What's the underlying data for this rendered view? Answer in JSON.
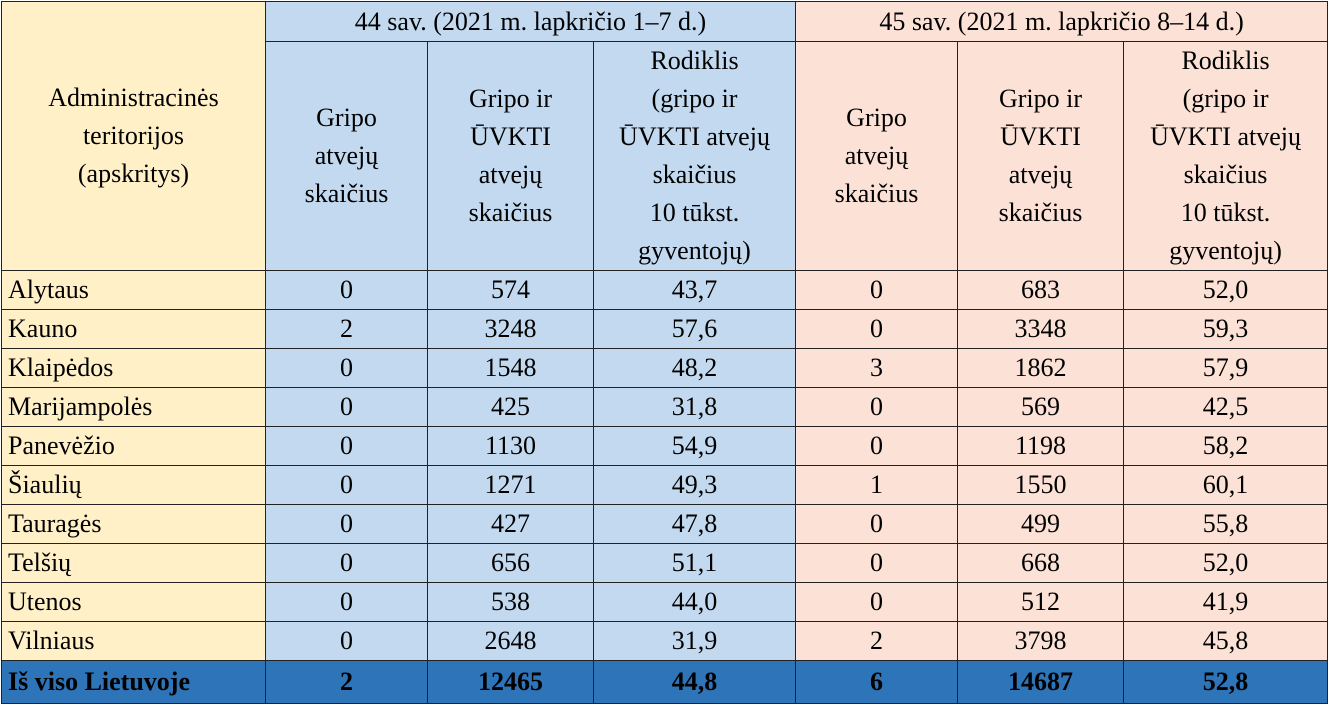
{
  "header": {
    "territory_label_lines": [
      "Administracinės",
      "teritorijos",
      "(apskritys)"
    ],
    "week44_title": "44 sav. (2021 m. lapkričio 1–7 d.)",
    "week45_title": "45 sav. (2021 m. lapkričio 8–14 d.)",
    "col_flu_lines": [
      "Gripo",
      "atvejų",
      "skaičius"
    ],
    "col_flu_ari_lines": [
      "Gripo ir",
      "ŪVKTI",
      "atvejų",
      "skaičius"
    ],
    "col_rate_lines": [
      "Rodiklis",
      "(gripo ir",
      "ŪVKTI atvejų",
      "skaičius",
      "10 tūkst.",
      "gyventojų)"
    ]
  },
  "rows": [
    {
      "territory": "Alytaus",
      "w44_flu": "0",
      "w44_flu_ari": "574",
      "w44_rate": "43,7",
      "w45_flu": "0",
      "w45_flu_ari": "683",
      "w45_rate": "52,0"
    },
    {
      "territory": "Kauno",
      "w44_flu": "2",
      "w44_flu_ari": "3248",
      "w44_rate": "57,6",
      "w45_flu": "0",
      "w45_flu_ari": "3348",
      "w45_rate": "59,3"
    },
    {
      "territory": "Klaipėdos",
      "w44_flu": "0",
      "w44_flu_ari": "1548",
      "w44_rate": "48,2",
      "w45_flu": "3",
      "w45_flu_ari": "1862",
      "w45_rate": "57,9"
    },
    {
      "territory": "Marijampolės",
      "w44_flu": "0",
      "w44_flu_ari": "425",
      "w44_rate": "31,8",
      "w45_flu": "0",
      "w45_flu_ari": "569",
      "w45_rate": "42,5"
    },
    {
      "territory": "Panevėžio",
      "w44_flu": "0",
      "w44_flu_ari": "1130",
      "w44_rate": "54,9",
      "w45_flu": "0",
      "w45_flu_ari": "1198",
      "w45_rate": "58,2"
    },
    {
      "territory": "Šiaulių",
      "w44_flu": "0",
      "w44_flu_ari": "1271",
      "w44_rate": "49,3",
      "w45_flu": "1",
      "w45_flu_ari": "1550",
      "w45_rate": "60,1"
    },
    {
      "territory": "Tauragės",
      "w44_flu": "0",
      "w44_flu_ari": "427",
      "w44_rate": "47,8",
      "w45_flu": "0",
      "w45_flu_ari": "499",
      "w45_rate": "55,8"
    },
    {
      "territory": "Telšių",
      "w44_flu": "0",
      "w44_flu_ari": "656",
      "w44_rate": "51,1",
      "w45_flu": "0",
      "w45_flu_ari": "668",
      "w45_rate": "52,0"
    },
    {
      "territory": "Utenos",
      "w44_flu": "0",
      "w44_flu_ari": "538",
      "w44_rate": "44,0",
      "w45_flu": "0",
      "w45_flu_ari": "512",
      "w45_rate": "41,9"
    },
    {
      "territory": "Vilniaus",
      "w44_flu": "0",
      "w44_flu_ari": "2648",
      "w44_rate": "31,9",
      "w45_flu": "2",
      "w45_flu_ari": "3798",
      "w45_rate": "45,8"
    }
  ],
  "total": {
    "territory": "Iš viso Lietuvoje",
    "w44_flu": "2",
    "w44_flu_ari": "12465",
    "w44_rate": "44,8",
    "w45_flu": "6",
    "w45_flu_ari": "14687",
    "w45_rate": "52,8"
  },
  "colors": {
    "territory_bg": "#fff0c8",
    "week44_bg": "#c2d9ef",
    "week45_bg": "#fbe1d6",
    "total_bg": "#2e74b8"
  }
}
